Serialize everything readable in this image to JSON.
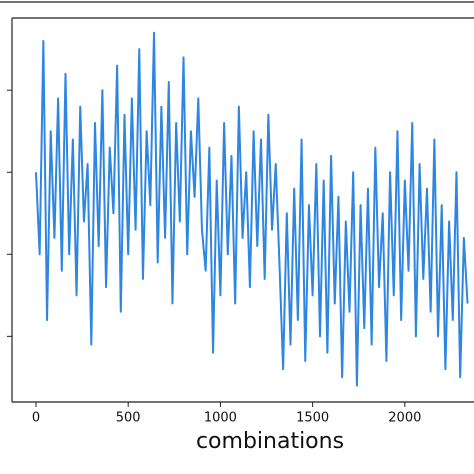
{
  "chart_data": {
    "type": "line",
    "x_label": "combinations",
    "color": "#2f86e0",
    "x": [
      0,
      20,
      40,
      60,
      80,
      100,
      120,
      140,
      160,
      180,
      200,
      220,
      240,
      260,
      280,
      300,
      320,
      340,
      360,
      380,
      400,
      420,
      440,
      460,
      480,
      500,
      520,
      540,
      560,
      580,
      600,
      620,
      640,
      660,
      680,
      700,
      720,
      740,
      760,
      780,
      800,
      820,
      840,
      860,
      880,
      900,
      920,
      940,
      960,
      980,
      1000,
      1020,
      1040,
      1060,
      1080,
      1100,
      1120,
      1140,
      1160,
      1180,
      1200,
      1220,
      1240,
      1260,
      1280,
      1300,
      1320,
      1340,
      1360,
      1380,
      1400,
      1420,
      1440,
      1460,
      1480,
      1500,
      1520,
      1540,
      1560,
      1580,
      1600,
      1620,
      1640,
      1660,
      1680,
      1700,
      1720,
      1740,
      1760,
      1780,
      1800,
      1820,
      1840,
      1860,
      1880,
      1900,
      1920,
      1940,
      1960,
      1980,
      2000,
      2020,
      2040,
      2060,
      2080,
      2100,
      2120,
      2140,
      2160,
      2180,
      2200,
      2220,
      2240,
      2260,
      2280,
      2300,
      2320,
      2340
    ],
    "values": [
      3.0,
      2.0,
      4.6,
      1.2,
      3.5,
      2.2,
      3.9,
      1.8,
      4.2,
      2.0,
      3.4,
      1.5,
      3.8,
      2.4,
      3.1,
      0.9,
      3.6,
      2.1,
      4.0,
      1.6,
      3.3,
      2.5,
      4.3,
      1.3,
      3.7,
      2.0,
      3.9,
      2.3,
      4.5,
      1.7,
      3.5,
      2.6,
      4.7,
      1.9,
      3.8,
      2.2,
      4.1,
      1.4,
      3.6,
      2.4,
      4.4,
      2.0,
      3.5,
      2.7,
      3.9,
      2.3,
      1.8,
      3.3,
      0.8,
      2.9,
      1.5,
      3.6,
      2.0,
      3.2,
      1.4,
      3.8,
      2.2,
      3.0,
      1.6,
      3.5,
      2.1,
      3.4,
      1.7,
      3.7,
      2.3,
      3.1,
      1.9,
      0.6,
      2.5,
      0.9,
      2.8,
      1.2,
      3.4,
      0.7,
      2.6,
      1.5,
      3.1,
      1.0,
      2.9,
      0.8,
      3.2,
      1.4,
      2.7,
      0.5,
      2.4,
      1.3,
      3.0,
      0.4,
      2.6,
      1.1,
      2.8,
      0.9,
      3.3,
      1.6,
      2.5,
      0.7,
      3.0,
      1.5,
      3.5,
      1.2,
      2.9,
      1.8,
      3.6,
      1.0,
      3.1,
      1.7,
      2.8,
      1.3,
      3.4,
      1.0,
      2.6,
      0.6,
      2.4,
      1.2,
      3.0,
      0.5,
      2.2,
      1.4
    ],
    "xlim": [
      -130,
      2375
    ],
    "xticks": [
      0,
      500,
      1000,
      1500,
      2000
    ],
    "ylim": [
      0.2,
      4.88
    ],
    "yticks": [
      1,
      2,
      3,
      4
    ]
  }
}
